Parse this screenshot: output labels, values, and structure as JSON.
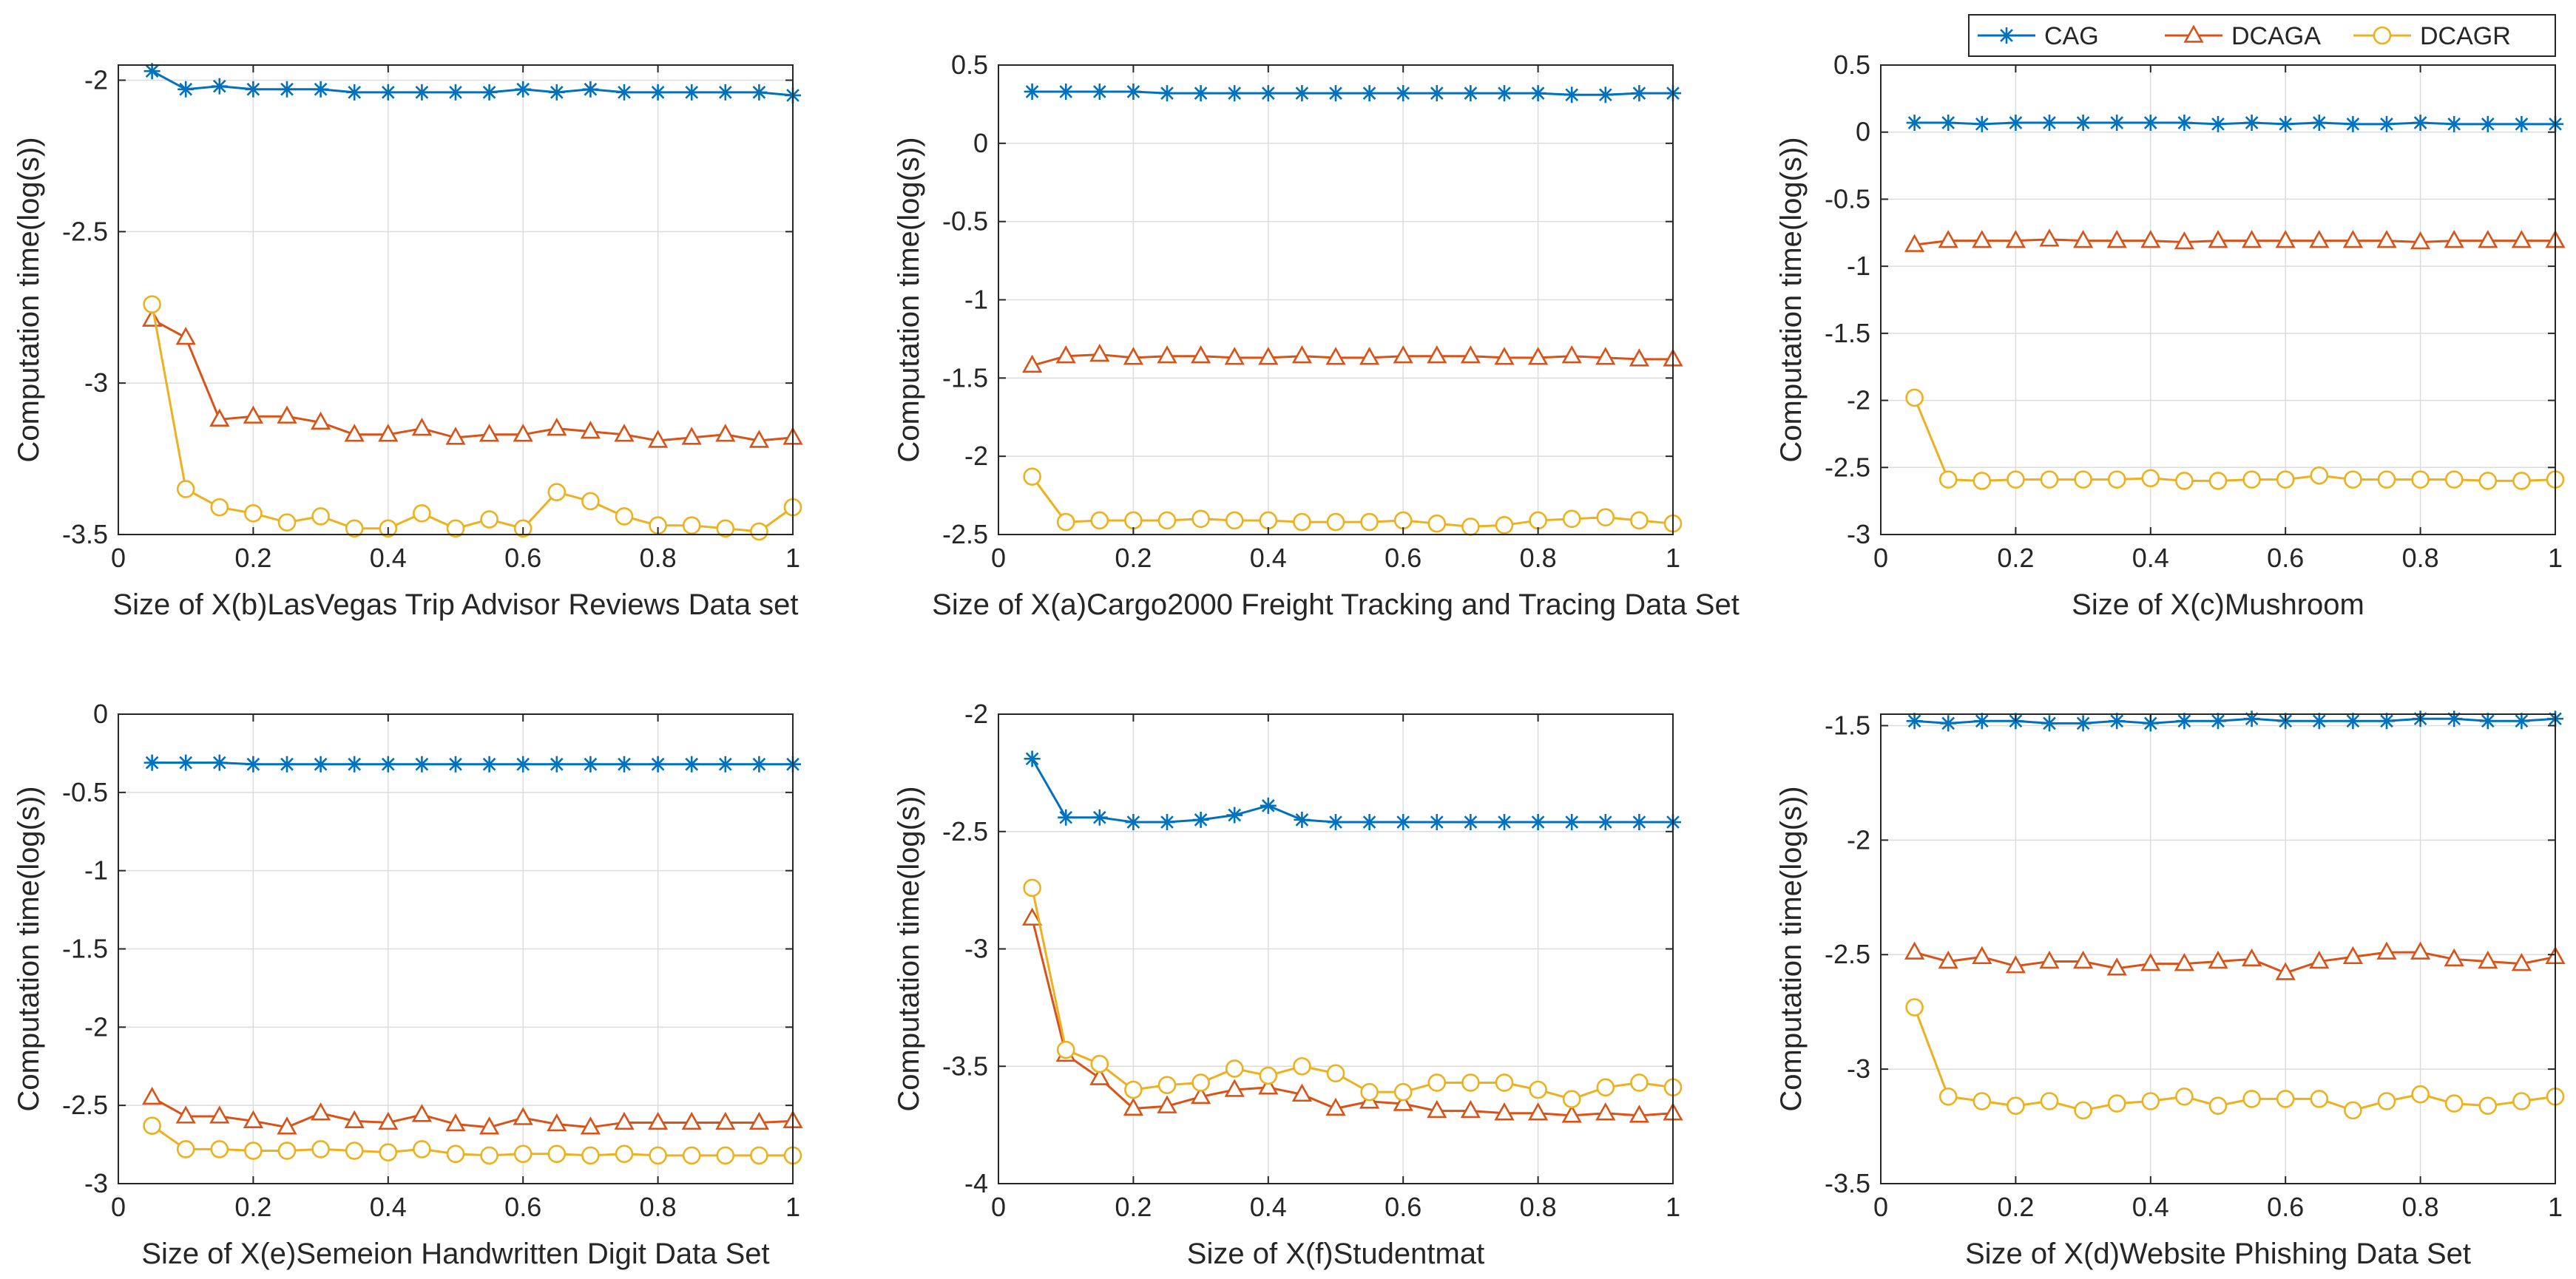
{
  "legend": {
    "placement": "top-right",
    "entries": [
      {
        "name": "CAG",
        "color": "#0072BD",
        "marker": "asterisk"
      },
      {
        "name": "DCAGA",
        "color": "#D95319",
        "marker": "triangle"
      },
      {
        "name": "DCAGR",
        "color": "#EDB120",
        "marker": "circle"
      }
    ]
  },
  "chart_data": [
    {
      "type": "line",
      "grid": true,
      "xlabel": "Size of X(b)LasVegas Trip Advisor Reviews Data set",
      "ylabel": "Computation time(log(s))",
      "xlim": [
        0,
        1
      ],
      "ylim": [
        -3.5,
        -1.95
      ],
      "xticks": [
        0,
        0.2,
        0.4,
        0.6,
        0.8,
        1
      ],
      "xtick_labels": [
        "0",
        "0.2",
        "0.4",
        "0.6",
        "0.8",
        "1"
      ],
      "yticks": [
        -3.5,
        -3,
        -2.5,
        -2
      ],
      "ytick_labels": [
        "-3.5",
        "-3",
        "-2.5",
        "-2"
      ],
      "x": [
        0.05,
        0.1,
        0.15,
        0.2,
        0.25,
        0.3,
        0.35,
        0.4,
        0.45,
        0.5,
        0.55,
        0.6,
        0.65,
        0.7,
        0.75,
        0.8,
        0.85,
        0.9,
        0.95,
        1
      ],
      "series": [
        {
          "name": "CAG",
          "values": [
            -1.97,
            -2.03,
            -2.02,
            -2.03,
            -2.03,
            -2.03,
            -2.04,
            -2.04,
            -2.04,
            -2.04,
            -2.04,
            -2.03,
            -2.04,
            -2.03,
            -2.04,
            -2.04,
            -2.04,
            -2.04,
            -2.04,
            -2.05
          ]
        },
        {
          "name": "DCAGA",
          "values": [
            -2.79,
            -2.85,
            -3.12,
            -3.11,
            -3.11,
            -3.13,
            -3.17,
            -3.17,
            -3.15,
            -3.18,
            -3.17,
            -3.17,
            -3.15,
            -3.16,
            -3.17,
            -3.19,
            -3.18,
            -3.17,
            -3.19,
            -3.18
          ]
        },
        {
          "name": "DCAGR",
          "values": [
            -2.74,
            -3.35,
            -3.41,
            -3.43,
            -3.46,
            -3.44,
            -3.48,
            -3.48,
            -3.43,
            -3.48,
            -3.45,
            -3.48,
            -3.36,
            -3.39,
            -3.44,
            -3.47,
            -3.47,
            -3.48,
            -3.49,
            -3.41
          ]
        }
      ]
    },
    {
      "type": "line",
      "grid": true,
      "xlabel": "Size of X(a)Cargo2000 Freight Tracking and Tracing Data Set",
      "ylabel": "Computation time(log(s))",
      "xlim": [
        0,
        1
      ],
      "ylim": [
        -2.5,
        0.5
      ],
      "xticks": [
        0,
        0.2,
        0.4,
        0.6,
        0.8,
        1
      ],
      "xtick_labels": [
        "0",
        "0.2",
        "0.4",
        "0.6",
        "0.8",
        "1"
      ],
      "yticks": [
        -2.5,
        -2,
        -1.5,
        -1,
        -0.5,
        0,
        0.5
      ],
      "ytick_labels": [
        "-2.5",
        "-2",
        "-1.5",
        "-1",
        "-0.5",
        "0",
        "0.5"
      ],
      "x": [
        0.05,
        0.1,
        0.15,
        0.2,
        0.25,
        0.3,
        0.35,
        0.4,
        0.45,
        0.5,
        0.55,
        0.6,
        0.65,
        0.7,
        0.75,
        0.8,
        0.85,
        0.9,
        0.95,
        1
      ],
      "series": [
        {
          "name": "CAG",
          "values": [
            0.33,
            0.33,
            0.33,
            0.33,
            0.32,
            0.32,
            0.32,
            0.32,
            0.32,
            0.32,
            0.32,
            0.32,
            0.32,
            0.32,
            0.32,
            0.32,
            0.31,
            0.31,
            0.32,
            0.32
          ]
        },
        {
          "name": "DCAGA",
          "values": [
            -1.42,
            -1.36,
            -1.35,
            -1.37,
            -1.36,
            -1.36,
            -1.37,
            -1.37,
            -1.36,
            -1.37,
            -1.37,
            -1.36,
            -1.36,
            -1.36,
            -1.37,
            -1.37,
            -1.36,
            -1.37,
            -1.38,
            -1.38
          ]
        },
        {
          "name": "DCAGR",
          "values": [
            -2.13,
            -2.42,
            -2.41,
            -2.41,
            -2.41,
            -2.4,
            -2.41,
            -2.41,
            -2.42,
            -2.42,
            -2.42,
            -2.41,
            -2.43,
            -2.45,
            -2.44,
            -2.41,
            -2.4,
            -2.39,
            -2.41,
            -2.43
          ]
        }
      ]
    },
    {
      "type": "line",
      "grid": true,
      "xlabel": "Size of X(c)Mushroom",
      "ylabel": "Computation time(log(s))",
      "xlim": [
        0,
        1
      ],
      "ylim": [
        -3,
        0.5
      ],
      "xticks": [
        0,
        0.2,
        0.4,
        0.6,
        0.8,
        1
      ],
      "xtick_labels": [
        "0",
        "0.2",
        "0.4",
        "0.6",
        "0.8",
        "1"
      ],
      "yticks": [
        -3,
        -2.5,
        -2,
        -1.5,
        -1,
        -0.5,
        0,
        0.5
      ],
      "ytick_labels": [
        "-3",
        "-2.5",
        "-2",
        "-1.5",
        "-1",
        "-0.5",
        "0",
        "0.5"
      ],
      "x": [
        0.05,
        0.1,
        0.15,
        0.2,
        0.25,
        0.3,
        0.35,
        0.4,
        0.45,
        0.5,
        0.55,
        0.6,
        0.65,
        0.7,
        0.75,
        0.8,
        0.85,
        0.9,
        0.95,
        1
      ],
      "series": [
        {
          "name": "CAG",
          "values": [
            0.07,
            0.07,
            0.06,
            0.07,
            0.07,
            0.07,
            0.07,
            0.07,
            0.07,
            0.06,
            0.07,
            0.06,
            0.07,
            0.06,
            0.06,
            0.07,
            0.06,
            0.06,
            0.06,
            0.06
          ]
        },
        {
          "name": "DCAGA",
          "values": [
            -0.84,
            -0.81,
            -0.81,
            -0.81,
            -0.8,
            -0.81,
            -0.81,
            -0.81,
            -0.82,
            -0.81,
            -0.81,
            -0.81,
            -0.81,
            -0.81,
            -0.81,
            -0.82,
            -0.81,
            -0.81,
            -0.81,
            -0.81
          ]
        },
        {
          "name": "DCAGR",
          "values": [
            -1.98,
            -2.59,
            -2.6,
            -2.59,
            -2.59,
            -2.59,
            -2.59,
            -2.58,
            -2.6,
            -2.6,
            -2.59,
            -2.59,
            -2.56,
            -2.59,
            -2.59,
            -2.59,
            -2.59,
            -2.6,
            -2.6,
            -2.59
          ]
        }
      ]
    },
    {
      "type": "line",
      "grid": true,
      "xlabel": "Size of X(e)Semeion Handwritten Digit Data Set",
      "ylabel": "Computation time(log(s))",
      "xlim": [
        0,
        1
      ],
      "ylim": [
        -3,
        0
      ],
      "xticks": [
        0,
        0.2,
        0.4,
        0.6,
        0.8,
        1
      ],
      "xtick_labels": [
        "0",
        "0.2",
        "0.4",
        "0.6",
        "0.8",
        "1"
      ],
      "yticks": [
        -3,
        -2.5,
        -2,
        -1.5,
        -1,
        -0.5,
        0
      ],
      "ytick_labels": [
        "-3",
        "-2.5",
        "-2",
        "-1.5",
        "-1",
        "-0.5",
        "0"
      ],
      "x": [
        0.05,
        0.1,
        0.15,
        0.2,
        0.25,
        0.3,
        0.35,
        0.4,
        0.45,
        0.5,
        0.55,
        0.6,
        0.65,
        0.7,
        0.75,
        0.8,
        0.85,
        0.9,
        0.95,
        1
      ],
      "series": [
        {
          "name": "CAG",
          "values": [
            -0.31,
            -0.31,
            -0.31,
            -0.32,
            -0.32,
            -0.32,
            -0.32,
            -0.32,
            -0.32,
            -0.32,
            -0.32,
            -0.32,
            -0.32,
            -0.32,
            -0.32,
            -0.32,
            -0.32,
            -0.32,
            -0.32,
            -0.32
          ]
        },
        {
          "name": "DCAGA",
          "values": [
            -2.45,
            -2.57,
            -2.57,
            -2.6,
            -2.64,
            -2.55,
            -2.6,
            -2.61,
            -2.56,
            -2.62,
            -2.64,
            -2.58,
            -2.62,
            -2.64,
            -2.61,
            -2.61,
            -2.61,
            -2.61,
            -2.61,
            -2.6
          ]
        },
        {
          "name": "DCAGR",
          "values": [
            -2.63,
            -2.78,
            -2.78,
            -2.79,
            -2.79,
            -2.78,
            -2.79,
            -2.8,
            -2.78,
            -2.81,
            -2.82,
            -2.81,
            -2.81,
            -2.82,
            -2.81,
            -2.82,
            -2.82,
            -2.82,
            -2.82,
            -2.82
          ]
        }
      ]
    },
    {
      "type": "line",
      "grid": true,
      "xlabel": "Size of X(f)Studentmat",
      "ylabel": "Computation time(log(s))",
      "xlim": [
        0,
        1
      ],
      "ylim": [
        -4,
        -2
      ],
      "xticks": [
        0,
        0.2,
        0.4,
        0.6,
        0.8,
        1
      ],
      "xtick_labels": [
        "0",
        "0.2",
        "0.4",
        "0.6",
        "0.8",
        "1"
      ],
      "yticks": [
        -4,
        -3.5,
        -3,
        -2.5,
        -2
      ],
      "ytick_labels": [
        "-4",
        "-3.5",
        "-3",
        "-2.5",
        "-2"
      ],
      "x": [
        0.05,
        0.1,
        0.15,
        0.2,
        0.25,
        0.3,
        0.35,
        0.4,
        0.45,
        0.5,
        0.55,
        0.6,
        0.65,
        0.7,
        0.75,
        0.8,
        0.85,
        0.9,
        0.95,
        1
      ],
      "series": [
        {
          "name": "CAG",
          "values": [
            -2.19,
            -2.44,
            -2.44,
            -2.46,
            -2.46,
            -2.45,
            -2.43,
            -2.39,
            -2.45,
            -2.46,
            -2.46,
            -2.46,
            -2.46,
            -2.46,
            -2.46,
            -2.46,
            -2.46,
            -2.46,
            -2.46,
            -2.46
          ]
        },
        {
          "name": "DCAGA",
          "values": [
            -2.87,
            -3.45,
            -3.55,
            -3.68,
            -3.67,
            -3.63,
            -3.6,
            -3.59,
            -3.62,
            -3.68,
            -3.65,
            -3.66,
            -3.69,
            -3.69,
            -3.7,
            -3.7,
            -3.71,
            -3.7,
            -3.71,
            -3.7
          ]
        },
        {
          "name": "DCAGR",
          "values": [
            -2.74,
            -3.43,
            -3.49,
            -3.6,
            -3.58,
            -3.57,
            -3.51,
            -3.54,
            -3.5,
            -3.53,
            -3.61,
            -3.61,
            -3.57,
            -3.57,
            -3.57,
            -3.6,
            -3.64,
            -3.59,
            -3.57,
            -3.59
          ]
        }
      ]
    },
    {
      "type": "line",
      "grid": true,
      "xlabel": "Size of X(d)Website Phishing Data Set",
      "ylabel": "Computation time(log(s))",
      "xlim": [
        0,
        1
      ],
      "ylim": [
        -3.5,
        -1.45
      ],
      "xticks": [
        0,
        0.2,
        0.4,
        0.6,
        0.8,
        1
      ],
      "xtick_labels": [
        "0",
        "0.2",
        "0.4",
        "0.6",
        "0.8",
        "1"
      ],
      "yticks": [
        -3.5,
        -3,
        -2.5,
        -2,
        -1.5
      ],
      "ytick_labels": [
        "-3.5",
        "-3",
        "-2.5",
        "-2",
        "-1.5"
      ],
      "x": [
        0.05,
        0.1,
        0.15,
        0.2,
        0.25,
        0.3,
        0.35,
        0.4,
        0.45,
        0.5,
        0.55,
        0.6,
        0.65,
        0.7,
        0.75,
        0.8,
        0.85,
        0.9,
        0.95,
        1
      ],
      "series": [
        {
          "name": "CAG",
          "values": [
            -1.48,
            -1.49,
            -1.48,
            -1.48,
            -1.49,
            -1.49,
            -1.48,
            -1.49,
            -1.48,
            -1.48,
            -1.47,
            -1.48,
            -1.48,
            -1.48,
            -1.48,
            -1.47,
            -1.47,
            -1.48,
            -1.48,
            -1.47
          ]
        },
        {
          "name": "DCAGA",
          "values": [
            -2.49,
            -2.53,
            -2.51,
            -2.55,
            -2.53,
            -2.53,
            -2.56,
            -2.54,
            -2.54,
            -2.53,
            -2.52,
            -2.58,
            -2.53,
            -2.51,
            -2.49,
            -2.49,
            -2.52,
            -2.53,
            -2.54,
            -2.51
          ]
        },
        {
          "name": "DCAGR",
          "values": [
            -2.73,
            -3.12,
            -3.14,
            -3.16,
            -3.14,
            -3.18,
            -3.15,
            -3.14,
            -3.12,
            -3.16,
            -3.13,
            -3.13,
            -3.13,
            -3.18,
            -3.14,
            -3.11,
            -3.15,
            -3.16,
            -3.14,
            -3.12
          ]
        }
      ]
    }
  ]
}
